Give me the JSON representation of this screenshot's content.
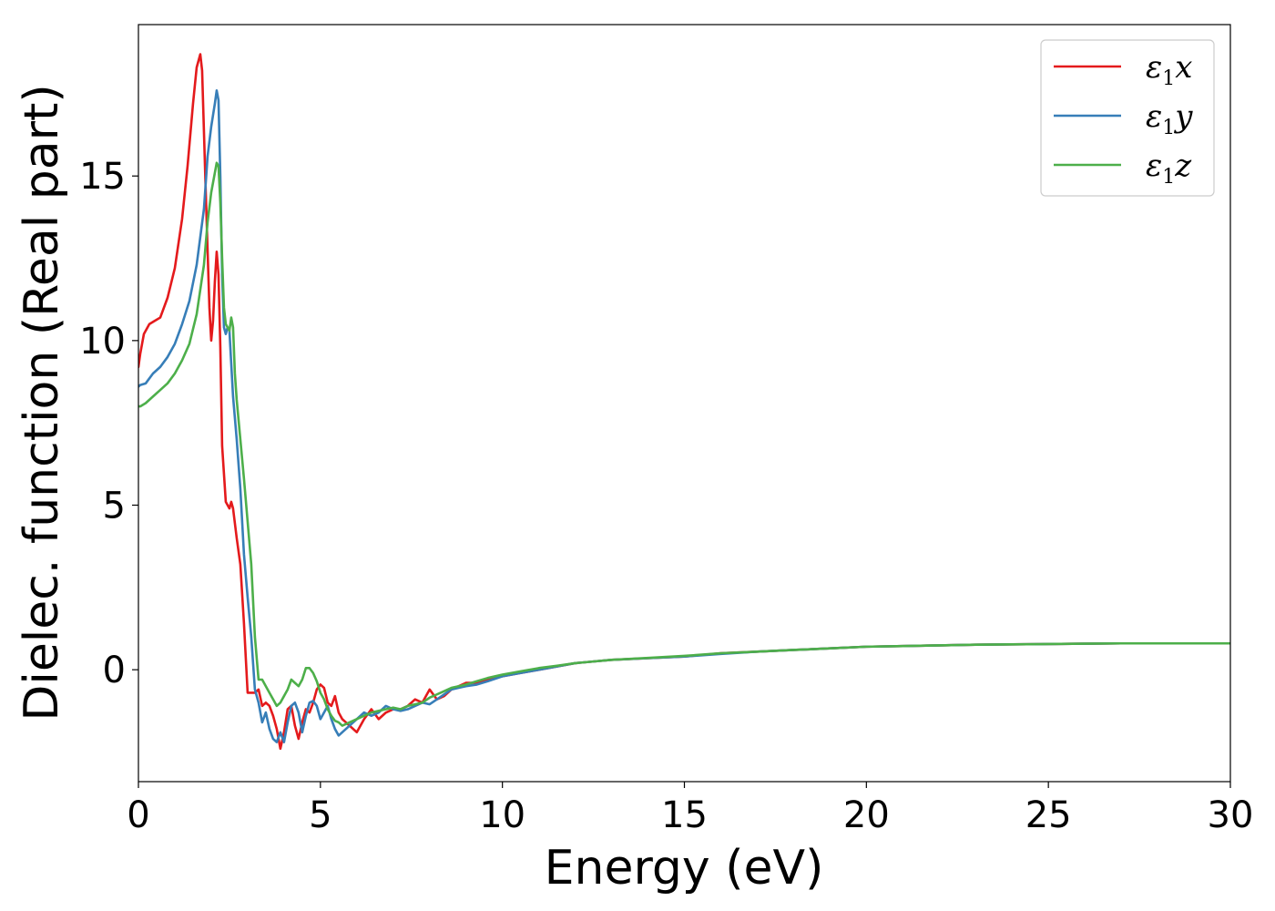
{
  "chart_data": {
    "type": "line",
    "xlabel": "Energy (eV)",
    "ylabel": "Dielec. function (Real part)",
    "xlim": [
      0,
      30
    ],
    "ylim": [
      -3.4,
      19.6
    ],
    "xticks": [
      0,
      5,
      10,
      15,
      20,
      25,
      30
    ],
    "yticks": [
      0,
      5,
      10,
      15
    ],
    "grid": false,
    "legend_position": "top-right",
    "series": [
      {
        "name": "ε1x",
        "legend_base": "ε",
        "legend_sub": "1",
        "legend_var": "x",
        "color": "#e41a1c",
        "x": [
          0,
          0.05,
          0.15,
          0.3,
          0.45,
          0.6,
          0.8,
          1.0,
          1.2,
          1.35,
          1.5,
          1.6,
          1.7,
          1.75,
          1.85,
          1.95,
          2.0,
          2.05,
          2.1,
          2.15,
          2.2,
          2.25,
          2.3,
          2.4,
          2.5,
          2.55,
          2.6,
          2.7,
          2.8,
          2.9,
          3.0,
          3.1,
          3.2,
          3.3,
          3.4,
          3.5,
          3.6,
          3.7,
          3.8,
          3.9,
          4.0,
          4.1,
          4.2,
          4.3,
          4.4,
          4.5,
          4.6,
          4.7,
          4.8,
          4.9,
          5.0,
          5.1,
          5.2,
          5.3,
          5.4,
          5.5,
          5.6,
          5.7,
          5.8,
          5.9,
          6.0,
          6.2,
          6.4,
          6.6,
          6.8,
          7.0,
          7.2,
          7.4,
          7.6,
          7.8,
          8.0,
          8.2,
          8.4,
          8.6,
          8.8,
          9.0,
          9.3,
          9.6,
          10.0,
          10.5,
          11.0,
          11.5,
          12.0,
          12.5,
          13.0,
          14.0,
          15.0,
          16.0,
          17.0,
          18.0,
          19.0,
          20.0,
          21.0,
          22.0,
          23.0,
          24.0,
          25.0,
          26.0,
          27.0,
          28.0,
          29.0,
          30.0
        ],
        "y": [
          9.2,
          9.6,
          10.2,
          10.5,
          10.6,
          10.7,
          11.3,
          12.2,
          13.7,
          15.3,
          17.2,
          18.3,
          18.7,
          18.2,
          14.5,
          11.0,
          10.0,
          10.6,
          11.8,
          12.7,
          12.0,
          9.8,
          6.8,
          5.1,
          4.9,
          5.1,
          4.9,
          4.0,
          3.2,
          1.4,
          -0.7,
          -0.7,
          -0.7,
          -0.6,
          -1.1,
          -1.0,
          -1.1,
          -1.4,
          -1.8,
          -2.4,
          -1.9,
          -1.2,
          -1.1,
          -1.7,
          -2.1,
          -1.6,
          -1.2,
          -1.3,
          -1.0,
          -0.6,
          -0.45,
          -0.55,
          -1.0,
          -1.1,
          -0.8,
          -1.3,
          -1.5,
          -1.6,
          -1.7,
          -1.8,
          -1.9,
          -1.5,
          -1.2,
          -1.5,
          -1.3,
          -1.2,
          -1.2,
          -1.1,
          -0.9,
          -1.0,
          -0.6,
          -0.9,
          -0.8,
          -0.6,
          -0.5,
          -0.4,
          -0.4,
          -0.3,
          -0.2,
          -0.1,
          0.0,
          0.1,
          0.2,
          0.25,
          0.3,
          0.35,
          0.4,
          0.5,
          0.55,
          0.6,
          0.65,
          0.7,
          0.72,
          0.74,
          0.76,
          0.77,
          0.78,
          0.79,
          0.8,
          0.8,
          0.8,
          0.8
        ]
      },
      {
        "name": "ε1y",
        "legend_base": "ε",
        "legend_sub": "1",
        "legend_var": "y",
        "color": "#377eb8",
        "x": [
          0,
          0.05,
          0.2,
          0.4,
          0.6,
          0.8,
          1.0,
          1.2,
          1.4,
          1.6,
          1.8,
          1.9,
          2.0,
          2.1,
          2.15,
          2.2,
          2.25,
          2.3,
          2.35,
          2.4,
          2.45,
          2.5,
          2.55,
          2.6,
          2.7,
          2.8,
          2.9,
          3.0,
          3.1,
          3.2,
          3.3,
          3.4,
          3.5,
          3.6,
          3.7,
          3.8,
          3.9,
          4.0,
          4.1,
          4.2,
          4.3,
          4.4,
          4.5,
          4.6,
          4.7,
          4.8,
          4.9,
          5.0,
          5.1,
          5.2,
          5.3,
          5.4,
          5.5,
          5.6,
          5.7,
          5.8,
          6.0,
          6.2,
          6.4,
          6.6,
          6.8,
          7.0,
          7.2,
          7.4,
          7.6,
          7.8,
          8.0,
          8.2,
          8.4,
          8.6,
          8.8,
          9.0,
          9.3,
          9.6,
          10.0,
          10.5,
          11.0,
          11.5,
          12.0,
          12.5,
          13.0,
          14.0,
          15.0,
          16.0,
          17.0,
          18.0,
          19.0,
          20.0,
          21.0,
          22.0,
          23.0,
          24.0,
          25.0,
          26.0,
          27.0,
          28.0,
          29.0,
          30.0
        ],
        "y": [
          8.6,
          8.65,
          8.7,
          9.0,
          9.2,
          9.5,
          9.9,
          10.5,
          11.2,
          12.3,
          14.0,
          15.6,
          16.5,
          17.2,
          17.6,
          17.3,
          15.0,
          12.0,
          10.4,
          10.2,
          10.4,
          10.3,
          9.3,
          8.3,
          7.0,
          5.5,
          3.5,
          2.2,
          1.0,
          -0.6,
          -1.0,
          -1.6,
          -1.3,
          -1.8,
          -2.1,
          -2.2,
          -1.9,
          -2.2,
          -1.6,
          -1.1,
          -1.0,
          -1.3,
          -1.9,
          -1.4,
          -1.0,
          -0.95,
          -1.1,
          -1.5,
          -1.3,
          -1.1,
          -1.5,
          -1.8,
          -2.0,
          -1.9,
          -1.8,
          -1.7,
          -1.5,
          -1.3,
          -1.4,
          -1.3,
          -1.1,
          -1.2,
          -1.25,
          -1.2,
          -1.1,
          -1.0,
          -1.05,
          -0.9,
          -0.75,
          -0.6,
          -0.55,
          -0.5,
          -0.45,
          -0.35,
          -0.2,
          -0.1,
          0.0,
          0.1,
          0.2,
          0.25,
          0.3,
          0.35,
          0.4,
          0.48,
          0.55,
          0.6,
          0.65,
          0.7,
          0.72,
          0.74,
          0.76,
          0.77,
          0.78,
          0.79,
          0.8,
          0.8,
          0.8,
          0.8
        ]
      },
      {
        "name": "ε1z",
        "legend_base": "ε",
        "legend_sub": "1",
        "legend_var": "z",
        "color": "#4daf4a",
        "x": [
          0,
          0.05,
          0.2,
          0.4,
          0.6,
          0.8,
          1.0,
          1.2,
          1.4,
          1.6,
          1.8,
          1.9,
          2.0,
          2.1,
          2.15,
          2.2,
          2.25,
          2.3,
          2.35,
          2.4,
          2.5,
          2.55,
          2.6,
          2.65,
          2.7,
          2.8,
          2.9,
          3.0,
          3.1,
          3.2,
          3.3,
          3.4,
          3.5,
          3.6,
          3.7,
          3.8,
          3.9,
          4.0,
          4.1,
          4.2,
          4.3,
          4.4,
          4.5,
          4.6,
          4.7,
          4.8,
          4.9,
          5.0,
          5.1,
          5.2,
          5.3,
          5.4,
          5.5,
          5.6,
          5.8,
          6.0,
          6.2,
          6.4,
          6.6,
          6.8,
          7.0,
          7.2,
          7.4,
          7.6,
          7.8,
          8.0,
          8.2,
          8.4,
          8.6,
          8.8,
          9.0,
          9.3,
          9.6,
          10.0,
          10.5,
          11.0,
          11.5,
          12.0,
          12.5,
          13.0,
          14.0,
          15.0,
          16.0,
          17.0,
          18.0,
          19.0,
          20.0,
          21.0,
          22.0,
          23.0,
          24.0,
          25.0,
          26.0,
          27.0,
          28.0,
          29.0,
          30.0
        ],
        "y": [
          8.0,
          8.0,
          8.1,
          8.3,
          8.5,
          8.7,
          9.0,
          9.4,
          9.9,
          10.8,
          12.3,
          13.6,
          14.5,
          15.1,
          15.4,
          15.3,
          14.2,
          12.5,
          11.0,
          10.5,
          10.3,
          10.7,
          10.4,
          9.0,
          8.2,
          7.0,
          5.8,
          4.5,
          3.2,
          1.0,
          -0.3,
          -0.3,
          -0.5,
          -0.7,
          -0.9,
          -1.1,
          -1.0,
          -0.8,
          -0.6,
          -0.3,
          -0.4,
          -0.5,
          -0.3,
          0.05,
          0.05,
          -0.1,
          -0.35,
          -0.7,
          -0.9,
          -1.2,
          -1.4,
          -1.55,
          -1.6,
          -1.7,
          -1.6,
          -1.5,
          -1.4,
          -1.3,
          -1.25,
          -1.2,
          -1.15,
          -1.2,
          -1.1,
          -1.05,
          -1.0,
          -0.85,
          -0.75,
          -0.65,
          -0.55,
          -0.5,
          -0.45,
          -0.35,
          -0.25,
          -0.15,
          -0.05,
          0.05,
          0.12,
          0.2,
          0.25,
          0.3,
          0.36,
          0.42,
          0.5,
          0.55,
          0.6,
          0.65,
          0.7,
          0.72,
          0.74,
          0.76,
          0.77,
          0.78,
          0.79,
          0.8,
          0.8,
          0.8,
          0.8
        ]
      }
    ]
  }
}
